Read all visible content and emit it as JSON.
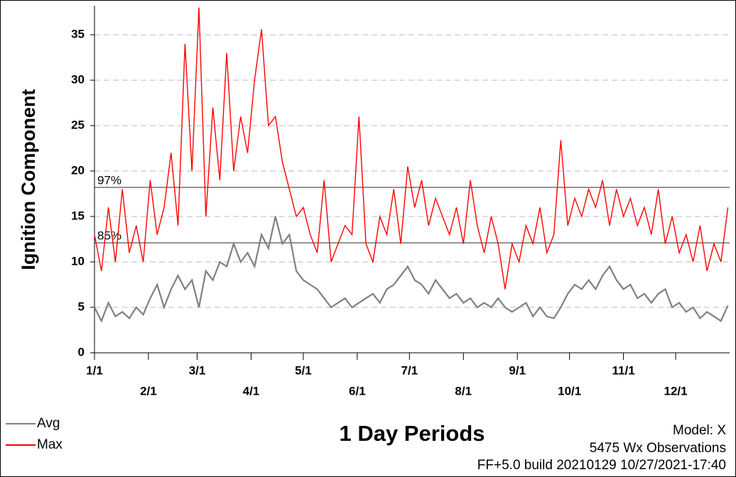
{
  "chart_data": {
    "type": "line",
    "y_label": "Ignition Component",
    "x_label": "1 Day Periods",
    "notes": [
      "Model: X",
      "5475 Wx Observations",
      "FF+5.0 build 20210129 10/27/2021-17:40"
    ],
    "xlim": [
      0,
      365
    ],
    "ylim": [
      0,
      38.2
    ],
    "xticks": [
      {
        "value": 0,
        "label": "1/1"
      },
      {
        "value": 31,
        "label": "2/1"
      },
      {
        "value": 59,
        "label": "3/1"
      },
      {
        "value": 90,
        "label": "4/1"
      },
      {
        "value": 120,
        "label": "5/1"
      },
      {
        "value": 151,
        "label": "6/1"
      },
      {
        "value": 181,
        "label": "7/1"
      },
      {
        "value": 212,
        "label": "8/1"
      },
      {
        "value": 243,
        "label": "9/1"
      },
      {
        "value": 273,
        "label": "10/1"
      },
      {
        "value": 304,
        "label": "11/1"
      },
      {
        "value": 334,
        "label": "12/1"
      }
    ],
    "yticks": [
      0,
      5,
      10,
      15,
      20,
      25,
      30,
      35
    ],
    "grid": true,
    "reference_lines": [
      {
        "label": "97%",
        "value": 18.2
      },
      {
        "label": "85%",
        "value": 12.1
      }
    ],
    "x": [
      0,
      4,
      8,
      12,
      16,
      20,
      24,
      28,
      32,
      36,
      40,
      44,
      48,
      52,
      56,
      60,
      64,
      68,
      72,
      76,
      80,
      84,
      88,
      92,
      96,
      100,
      104,
      108,
      112,
      116,
      120,
      124,
      128,
      132,
      136,
      140,
      144,
      148,
      152,
      156,
      160,
      164,
      168,
      172,
      176,
      180,
      184,
      188,
      192,
      196,
      200,
      204,
      208,
      212,
      216,
      220,
      224,
      228,
      232,
      236,
      240,
      244,
      248,
      252,
      256,
      260,
      264,
      268,
      272,
      276,
      280,
      284,
      288,
      292,
      296,
      300,
      304,
      308,
      312,
      316,
      320,
      324,
      328,
      332,
      336,
      340,
      344,
      348,
      352,
      356,
      360,
      364
    ],
    "series": [
      {
        "name": "Avg",
        "color": "#808080",
        "values": [
          5,
          3.5,
          5.5,
          4,
          4.5,
          3.8,
          5,
          4.2,
          6,
          7.5,
          5,
          7,
          8.5,
          7,
          8,
          5,
          9,
          8,
          10,
          9.5,
          12,
          10,
          11,
          9.5,
          13,
          11.5,
          15,
          12,
          13,
          9,
          8,
          7.5,
          7,
          6,
          5,
          5.5,
          6,
          5,
          5.5,
          6,
          6.5,
          5.5,
          7,
          7.5,
          8.5,
          9.5,
          8,
          7.5,
          6.5,
          8,
          7,
          6,
          6.5,
          5.5,
          6,
          5,
          5.5,
          5,
          6,
          5,
          4.5,
          5,
          5.5,
          4,
          5,
          4,
          3.8,
          5,
          6.5,
          7.5,
          7,
          8,
          7,
          8.5,
          9.5,
          8,
          7,
          7.5,
          6,
          6.5,
          5.5,
          6.5,
          7,
          5,
          5.5,
          4.5,
          5,
          3.8,
          4.5,
          4,
          3.5,
          5.2
        ]
      },
      {
        "name": "Max",
        "color": "#ff0000",
        "values": [
          13,
          9,
          16,
          10,
          18,
          11,
          14,
          10,
          19,
          13,
          16,
          22,
          14,
          34,
          20,
          38,
          15,
          27,
          19,
          33,
          20,
          26,
          22,
          30,
          35.6,
          25,
          26,
          21,
          18,
          15,
          16,
          13,
          11,
          19,
          10,
          12,
          14,
          13,
          26,
          12,
          10,
          15,
          13,
          18,
          12,
          20.5,
          16,
          19,
          14,
          17,
          15,
          13,
          16,
          12,
          19,
          14,
          11,
          15,
          12,
          7,
          12,
          10,
          14,
          12,
          16,
          11,
          13,
          23.4,
          14,
          17,
          15,
          18,
          16,
          19,
          14,
          18,
          15,
          17,
          14,
          16,
          13,
          18,
          12,
          15,
          11,
          13,
          10,
          14,
          9,
          12,
          10,
          16
        ]
      }
    ]
  }
}
